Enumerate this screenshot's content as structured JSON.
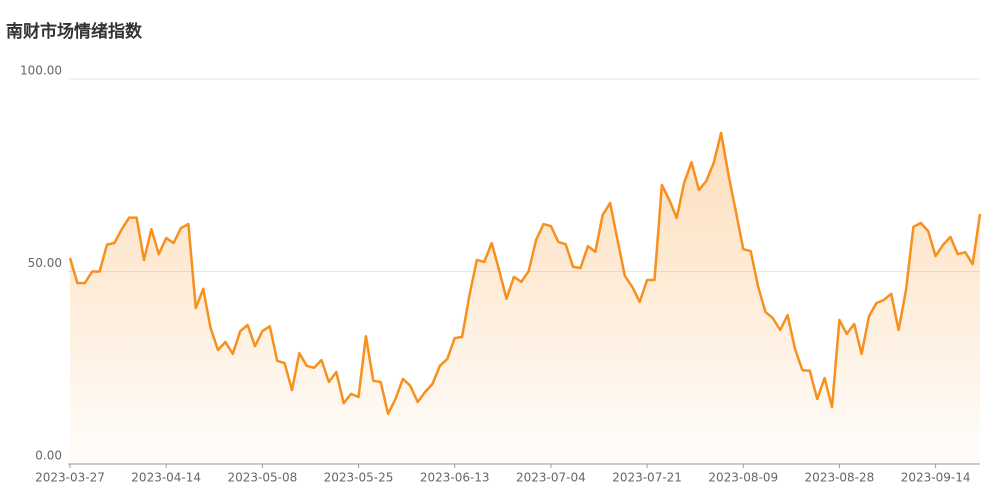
{
  "chart_data": {
    "type": "line",
    "title": "南财市场情绪指数",
    "categories": [
      "2023-03-27",
      null,
      null,
      null,
      null,
      null,
      null,
      null,
      null,
      null,
      null,
      null,
      null,
      "2023-04-14",
      null,
      null,
      null,
      null,
      null,
      null,
      null,
      null,
      null,
      null,
      null,
      null,
      "2023-05-08",
      null,
      null,
      null,
      null,
      null,
      null,
      null,
      null,
      null,
      null,
      null,
      null,
      "2023-05-25",
      null,
      null,
      null,
      null,
      null,
      null,
      null,
      null,
      null,
      null,
      null,
      null,
      "2023-06-13",
      null,
      null,
      null,
      null,
      null,
      null,
      null,
      null,
      null,
      null,
      null,
      null,
      "2023-07-04",
      null,
      null,
      null,
      null,
      null,
      null,
      null,
      null,
      null,
      null,
      null,
      null,
      "2023-07-21",
      null,
      null,
      null,
      null,
      null,
      null,
      null,
      null,
      null,
      null,
      null,
      null,
      "2023-08-09",
      null,
      null,
      null,
      null,
      null,
      null,
      null,
      null,
      null,
      null,
      null,
      null,
      "2023-08-28",
      null,
      null,
      null,
      null,
      null,
      null,
      null,
      null,
      null,
      null,
      null,
      null,
      "2023-09-14",
      null,
      null,
      null,
      null,
      null,
      null
    ],
    "values": [
      53.5,
      47,
      47,
      50,
      50,
      57,
      57.4,
      61,
      64,
      64,
      53,
      61,
      54.5,
      58.7,
      57.4,
      61.3,
      62.3,
      40.5,
      45.5,
      35.3,
      29.6,
      31.7,
      28.6,
      34.5,
      36.1,
      30.6,
      34.5,
      35.8,
      26.8,
      26.2,
      19.2,
      28.8,
      25.5,
      25,
      27,
      21.3,
      23.9,
      15.8,
      18.2,
      17.4,
      33.2,
      21.6,
      21.3,
      13,
      16.9,
      22.1,
      20.3,
      16.1,
      18.7,
      20.8,
      25.5,
      27.3,
      32.7,
      33,
      43.9,
      53,
      52.5,
      57.4,
      50.4,
      42.9,
      48.6,
      47.3,
      50.1,
      58.2,
      62.3,
      61.8,
      57.7,
      57.1,
      51.2,
      50.9,
      56.6,
      55.1,
      64.7,
      67.8,
      58.2,
      48.8,
      46,
      42.1,
      47.8,
      47.8,
      72.5,
      68.6,
      63.9,
      73,
      78.4,
      71.2,
      73.5,
      78.2,
      86,
      75.1,
      65.5,
      55.8,
      55.3,
      46.2,
      39.5,
      37.9,
      34.8,
      38.7,
      29.9,
      24.4,
      24.2,
      16.9,
      22.3,
      14.8,
      37.4,
      33.8,
      36.4,
      28.6,
      38.4,
      41.8,
      42.6,
      44.2,
      34.8,
      45.2,
      61.6,
      62.6,
      60.5,
      54,
      56.9,
      59,
      54.5,
      55,
      51.9,
      64.9
    ],
    "color": "#f7901e",
    "area": true,
    "ylim": [
      0,
      100
    ],
    "yticks": [
      {
        "value": 0,
        "label": "0.00"
      },
      {
        "value": 50,
        "label": "50.00"
      },
      {
        "value": 100,
        "label": "100.00"
      }
    ],
    "grid": true
  }
}
